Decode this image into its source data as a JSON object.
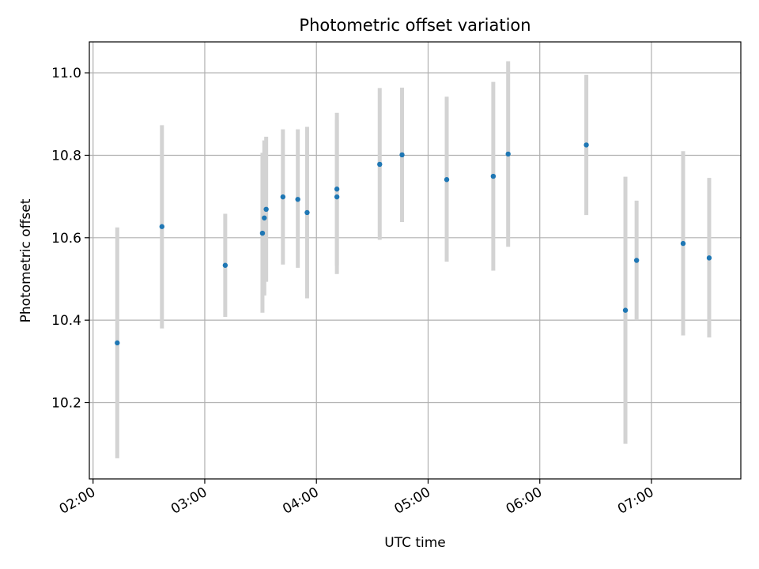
{
  "chart_data": {
    "type": "scatter",
    "title": "Photometric offset variation",
    "xlabel": "UTC time",
    "ylabel": "Photometric offset",
    "x_axis_type": "time",
    "xlim": [
      "01:58",
      "07:48"
    ],
    "ylim": [
      10.015,
      11.075
    ],
    "x_ticks": [
      "02:00",
      "03:00",
      "04:00",
      "05:00",
      "06:00",
      "07:00"
    ],
    "y_ticks": [
      10.2,
      10.4,
      10.6,
      10.8,
      11.0
    ],
    "y_tick_labels": [
      "10.2",
      "10.4",
      "10.6",
      "10.8",
      "11.0"
    ],
    "grid": true,
    "point_color": "#1f77b4",
    "errorbar_color": "#d3d3d3",
    "points": [
      {
        "x": "02:13",
        "y": 10.345,
        "err_low": 10.065,
        "err_high": 10.625
      },
      {
        "x": "02:37",
        "y": 10.627,
        "err_low": 10.38,
        "err_high": 10.873
      },
      {
        "x": "03:11",
        "y": 10.533,
        "err_low": 10.408,
        "err_high": 10.658
      },
      {
        "x": "03:31",
        "y": 10.611,
        "err_low": 10.418,
        "err_high": 10.806
      },
      {
        "x": "03:32",
        "y": 10.648,
        "err_low": 10.46,
        "err_high": 10.836
      },
      {
        "x": "03:33",
        "y": 10.669,
        "err_low": 10.493,
        "err_high": 10.845
      },
      {
        "x": "03:42",
        "y": 10.699,
        "err_low": 10.535,
        "err_high": 10.863
      },
      {
        "x": "03:50",
        "y": 10.693,
        "err_low": 10.527,
        "err_high": 10.863
      },
      {
        "x": "03:55",
        "y": 10.661,
        "err_low": 10.453,
        "err_high": 10.869
      },
      {
        "x": "04:11",
        "y": 10.718,
        "err_low": 10.533,
        "err_high": 10.903
      },
      {
        "x": "04:11",
        "y": 10.699,
        "err_low": 10.512,
        "err_high": 10.886
      },
      {
        "x": "04:34",
        "y": 10.778,
        "err_low": 10.595,
        "err_high": 10.963
      },
      {
        "x": "04:46",
        "y": 10.801,
        "err_low": 10.638,
        "err_high": 10.964
      },
      {
        "x": "05:10",
        "y": 10.741,
        "err_low": 10.542,
        "err_high": 10.942
      },
      {
        "x": "05:35",
        "y": 10.749,
        "err_low": 10.52,
        "err_high": 10.978
      },
      {
        "x": "05:43",
        "y": 10.803,
        "err_low": 10.578,
        "err_high": 11.028
      },
      {
        "x": "06:25",
        "y": 10.825,
        "err_low": 10.655,
        "err_high": 10.995
      },
      {
        "x": "06:46",
        "y": 10.424,
        "err_low": 10.1,
        "err_high": 10.748
      },
      {
        "x": "06:52",
        "y": 10.545,
        "err_low": 10.4,
        "err_high": 10.69
      },
      {
        "x": "07:17",
        "y": 10.586,
        "err_low": 10.363,
        "err_high": 10.81
      },
      {
        "x": "07:31",
        "y": 10.551,
        "err_low": 10.358,
        "err_high": 10.745
      }
    ]
  }
}
